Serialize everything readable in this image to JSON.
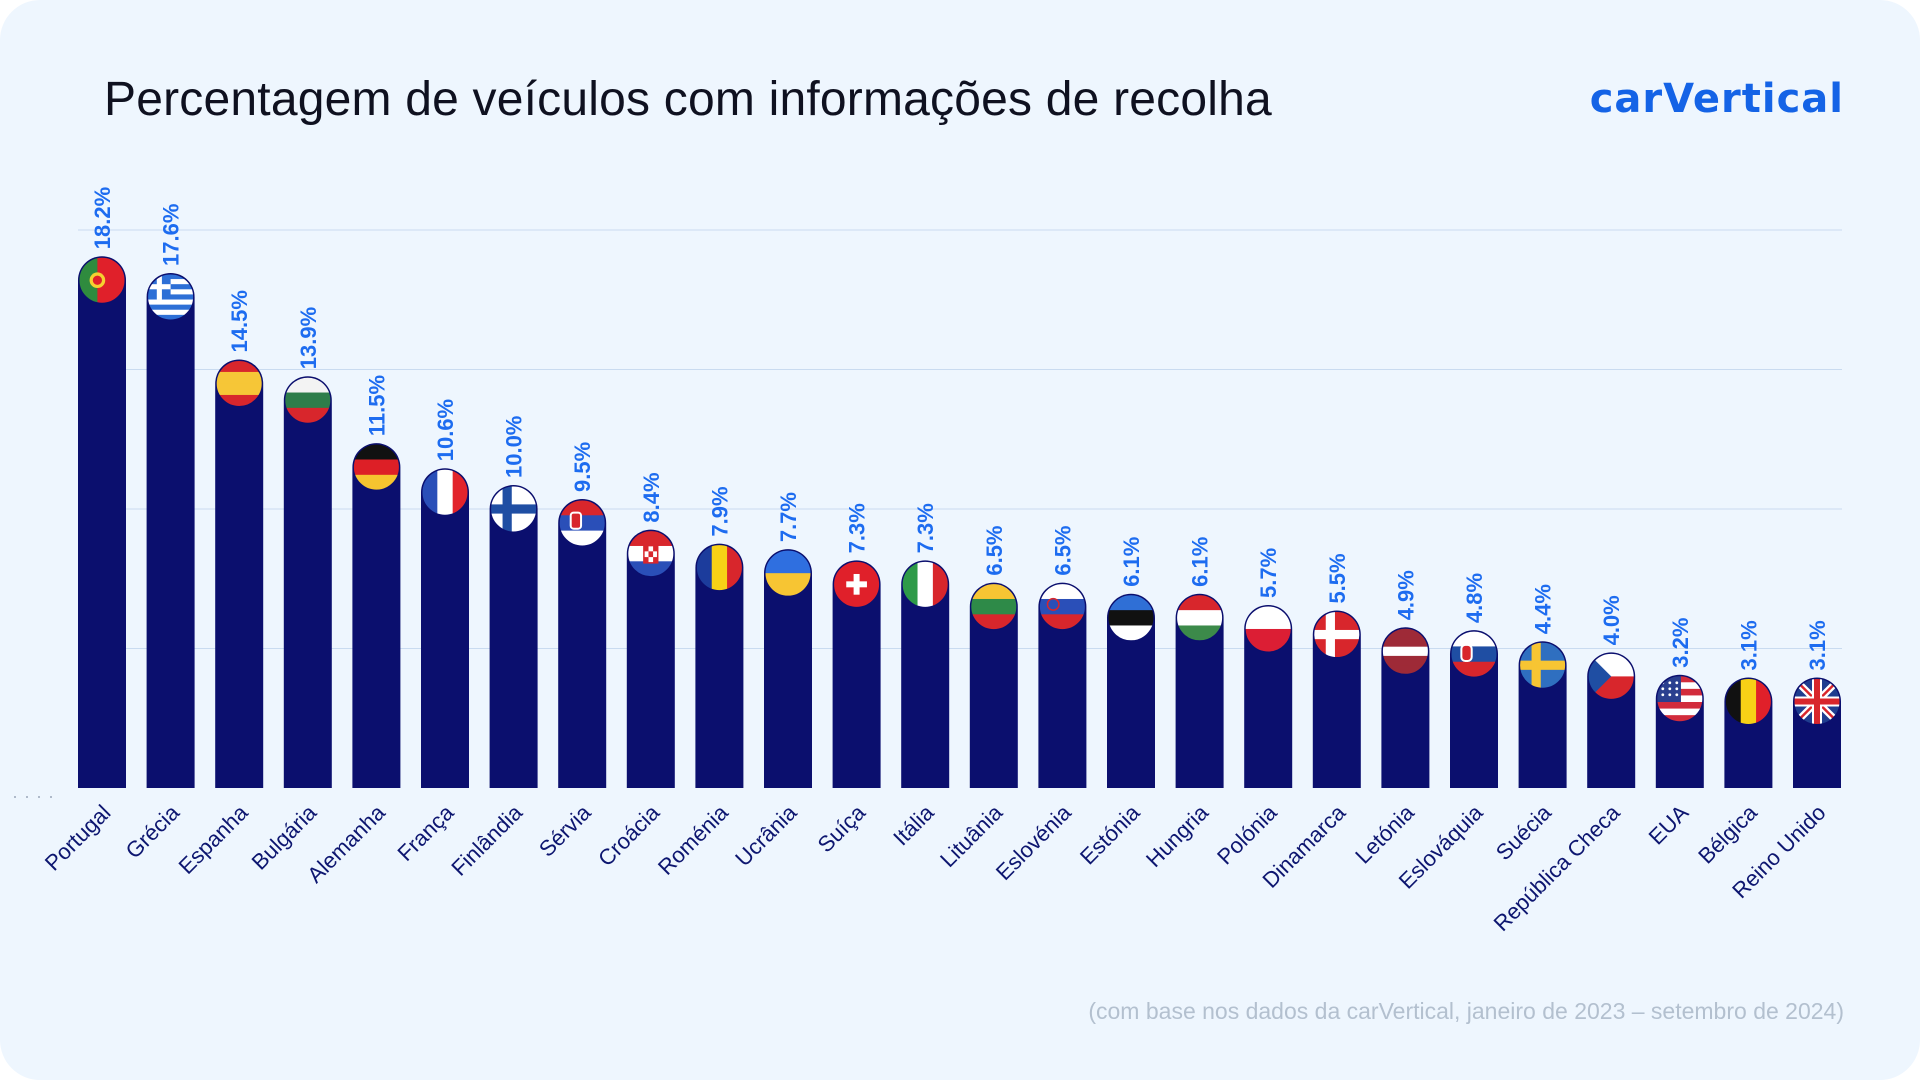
{
  "header": {
    "title": "Percentagem de veículos com informações de recolha",
    "brand": "carVertical"
  },
  "footnote": "(com base nos dados da carVertical, janeiro de 2023 – setembro de 2024)",
  "colors": {
    "background": "#eef6fe",
    "bar": "#0b0f6e",
    "value_label": "#1d6cf0",
    "brand": "#1463e6",
    "gridline": "#c9dbf0"
  },
  "chart_data": {
    "type": "bar",
    "title": "Percentagem de veículos com informações de recolha",
    "xlabel": "",
    "ylabel": "",
    "value_suffix": "%",
    "ylim": [
      0,
      20
    ],
    "grid": true,
    "categories": [
      "Portugal",
      "Grécia",
      "Espanha",
      "Bulgária",
      "Alemanha",
      "França",
      "Finlândia",
      "Sérvia",
      "Croácia",
      "Roménia",
      "Ucrânia",
      "Suíça",
      "Itália",
      "Lituânia",
      "Eslovénia",
      "Estónia",
      "Hungria",
      "Polónia",
      "Dinamarca",
      "Letónia",
      "Eslováquia",
      "Suécia",
      "República Checa",
      "EUA",
      "Bélgica",
      "Reino Unido"
    ],
    "values": [
      18.2,
      17.6,
      14.5,
      13.9,
      11.5,
      10.6,
      10.0,
      9.5,
      8.4,
      7.9,
      7.7,
      7.3,
      7.3,
      6.5,
      6.5,
      6.1,
      6.1,
      5.7,
      5.5,
      4.9,
      4.8,
      4.4,
      4.0,
      3.2,
      3.1,
      3.1
    ],
    "flags": [
      "portugal-flag-icon",
      "greece-flag-icon",
      "spain-flag-icon",
      "bulgaria-flag-icon",
      "germany-flag-icon",
      "france-flag-icon",
      "finland-flag-icon",
      "serbia-flag-icon",
      "croatia-flag-icon",
      "romania-flag-icon",
      "ukraine-flag-icon",
      "switzerland-flag-icon",
      "italy-flag-icon",
      "lithuania-flag-icon",
      "slovenia-flag-icon",
      "estonia-flag-icon",
      "hungary-flag-icon",
      "poland-flag-icon",
      "denmark-flag-icon",
      "latvia-flag-icon",
      "slovakia-flag-icon",
      "sweden-flag-icon",
      "czech-republic-flag-icon",
      "usa-flag-icon",
      "belgium-flag-icon",
      "uk-flag-icon"
    ]
  }
}
